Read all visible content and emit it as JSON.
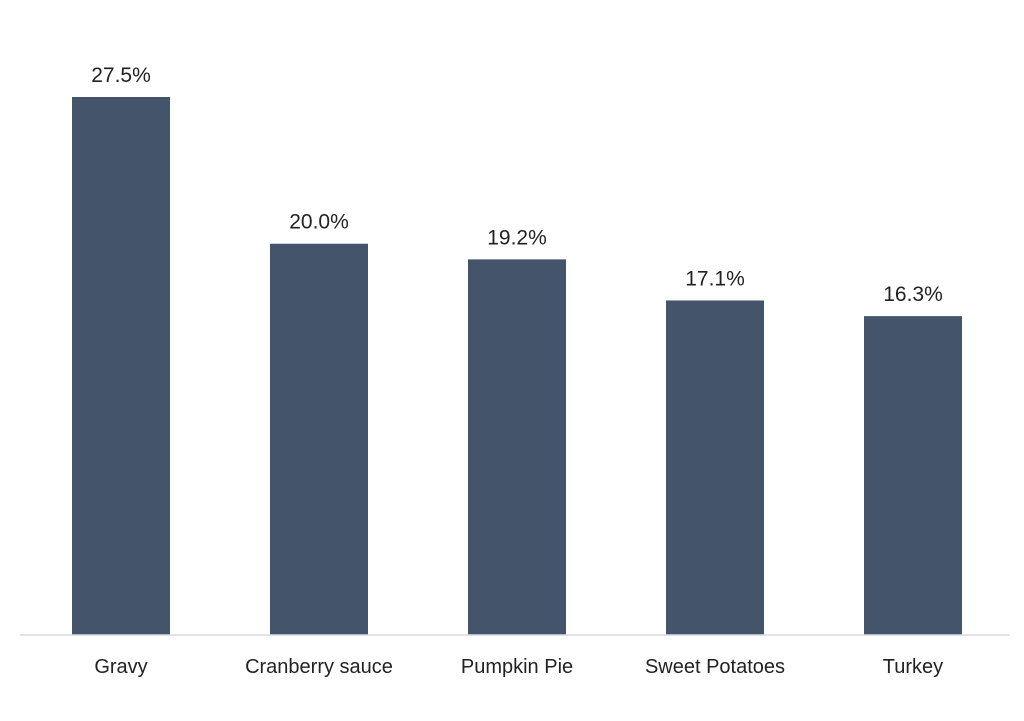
{
  "chart_data": {
    "type": "bar",
    "title": "",
    "xlabel": "",
    "ylabel": "",
    "categories": [
      "Gravy",
      "Cranberry sauce",
      "Pumpkin Pie",
      "Sweet Potatoes",
      "Turkey"
    ],
    "values": [
      27.5,
      20.0,
      19.2,
      17.1,
      16.3
    ],
    "value_labels": [
      "27.5%",
      "20.0%",
      "19.2%",
      "17.1%",
      "16.3%"
    ],
    "unit": "%",
    "ylim": [
      0,
      27.5
    ],
    "grid": false,
    "legend": "none"
  },
  "colors": {
    "bar": "#44546a",
    "baseline": "#d9d9e8",
    "text": "#222222",
    "background": "#ffffff"
  }
}
